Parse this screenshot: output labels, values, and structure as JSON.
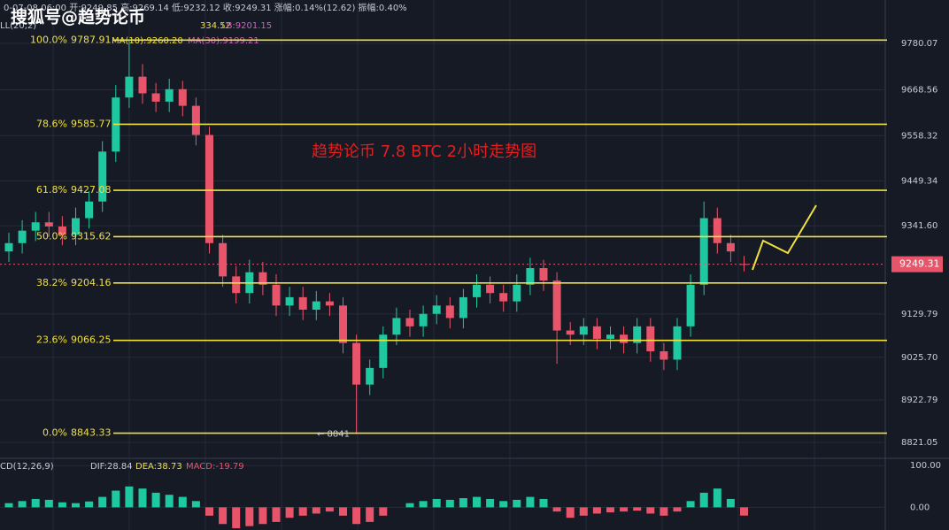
{
  "chart_data": {
    "type": "candlestick",
    "watermark": "搜狐号@趋势论币",
    "ohlc_header": "0-07-08 06:00  开:9249.85  高:9269.14  低:9232.12  收:9249.31  涨幅:0.14%(12.62)  振幅:0.40%",
    "indicator_header": [
      "LL(20,2)",
      "334.52",
      "LB:9201.15",
      "MA(10):9260.20",
      "MA(30):9199.21"
    ],
    "annotation": "趋势论币  7.8  BTC  2小时走势图",
    "last_price": 9249.31,
    "low_marker": {
      "label": "← 8841",
      "value": 8841
    },
    "ylim": [
      8782.8,
      9884.3
    ],
    "yticks": [
      9780.07,
      9668.56,
      9558.32,
      9449.34,
      {
        "value": 9341.6,
        "label": "9341.60"
      },
      9129.79,
      {
        "value": 9025.7,
        "label": "9025.70"
      },
      8922.79,
      8821.05
    ],
    "fib": [
      {
        "level": "100.0%",
        "value": 9787.91
      },
      {
        "level": "78.6%",
        "value": 9585.77
      },
      {
        "level": "61.8%",
        "value": 9427.08
      },
      {
        "level": "50.0%",
        "value": 9315.62
      },
      {
        "level": "38.2%",
        "value": 9204.16
      },
      {
        "level": "23.6%",
        "value": 9066.25
      },
      {
        "level": "0.0%",
        "value": 8843.33
      }
    ],
    "open": [
      9280,
      9300,
      9330,
      9350,
      9340,
      9320,
      9360,
      9400,
      9520,
      9650,
      9700,
      9660,
      9640,
      9670,
      9630,
      9560,
      9300,
      9220,
      9180,
      9230,
      9200,
      9150,
      9170,
      9140,
      9160,
      9150,
      9060,
      8960,
      9000,
      9080,
      9120,
      9100,
      9130,
      9150,
      9120,
      9170,
      9200,
      9180,
      9160,
      9200,
      9240,
      9210,
      9090,
      9080,
      9100,
      9070,
      9080,
      9060,
      9100,
      9040,
      9020,
      9100,
      9200,
      9360,
      9300,
      9249.85
    ],
    "high": [
      9325,
      9355,
      9375,
      9375,
      9365,
      9385,
      9425,
      9545,
      9680,
      9787,
      9730,
      9685,
      9695,
      9690,
      9650,
      9580,
      9320,
      9245,
      9260,
      9255,
      9225,
      9195,
      9195,
      9185,
      9180,
      9170,
      9080,
      9020,
      9100,
      9145,
      9140,
      9150,
      9175,
      9170,
      9190,
      9225,
      9220,
      9200,
      9225,
      9265,
      9260,
      9230,
      9110,
      9120,
      9120,
      9100,
      9100,
      9120,
      9120,
      9060,
      9120,
      9225,
      9400,
      9385,
      9320,
      9269.14
    ],
    "low": [
      9255,
      9275,
      9305,
      9315,
      9295,
      9295,
      9335,
      9375,
      9495,
      9625,
      9635,
      9615,
      9615,
      9605,
      9535,
      9275,
      9195,
      9155,
      9155,
      9175,
      9125,
      9125,
      9115,
      9115,
      9125,
      9035,
      8841,
      8935,
      8975,
      9055,
      9075,
      9075,
      9105,
      9095,
      9095,
      9145,
      9155,
      9135,
      9135,
      9175,
      9185,
      9010,
      9055,
      9055,
      9045,
      9045,
      9035,
      9035,
      9015,
      8995,
      8995,
      9075,
      9175,
      9275,
      9255,
      9232.12
    ],
    "close": [
      9300,
      9330,
      9350,
      9340,
      9320,
      9360,
      9400,
      9520,
      9650,
      9700,
      9660,
      9640,
      9670,
      9630,
      9560,
      9300,
      9220,
      9180,
      9230,
      9200,
      9150,
      9170,
      9140,
      9160,
      9150,
      9060,
      8960,
      9000,
      9080,
      9120,
      9100,
      9130,
      9150,
      9120,
      9170,
      9200,
      9180,
      9160,
      9200,
      9240,
      9210,
      9090,
      9080,
      9100,
      9070,
      9080,
      9060,
      9100,
      9040,
      9020,
      9100,
      9200,
      9360,
      9300,
      9280,
      9249.31
    ],
    "up_color": "#1ec8a0",
    "down_color": "#e8556a",
    "fib_color": "#f0e040",
    "macd": {
      "title": "CD(12,26,9)",
      "dif": "DIF:28.84",
      "dea": "DEA:38.73",
      "macd": "MACD:-19.79",
      "ylim": [
        -54.3,
        117.4
      ],
      "yticks": [
        {
          "value": 100,
          "label": "100.00"
        },
        {
          "value": 0,
          "label": "0.00"
        }
      ],
      "values": [
        10,
        15,
        20,
        18,
        12,
        10,
        14,
        25,
        40,
        50,
        45,
        35,
        30,
        25,
        15,
        -20,
        -40,
        -50,
        -45,
        -40,
        -35,
        -25,
        -20,
        -15,
        -10,
        -20,
        -40,
        -35,
        -20,
        0,
        10,
        15,
        20,
        18,
        22,
        25,
        20,
        15,
        18,
        25,
        20,
        -10,
        -25,
        -20,
        -15,
        -12,
        -10,
        -8,
        -15,
        -20,
        -10,
        15,
        35,
        45,
        20,
        -19.79
      ]
    }
  }
}
